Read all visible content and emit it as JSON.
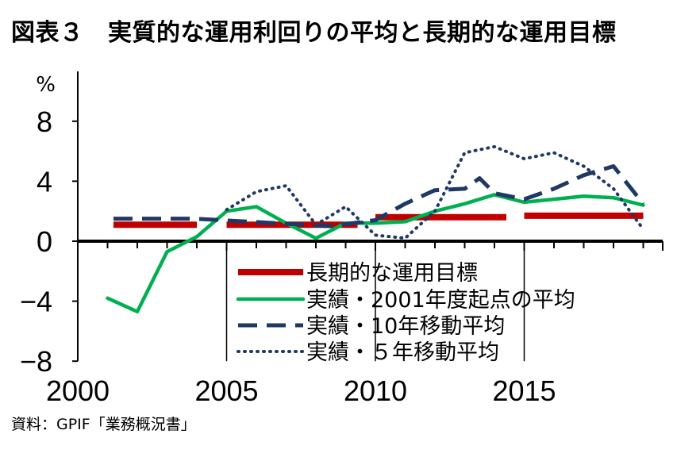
{
  "title": "図表３　実質的な運用利回りの平均と長期的な運用目標",
  "source": "資料：GPIF「業務概況書」",
  "chart_data": {
    "type": "line",
    "ylabel": "%",
    "ylim": [
      -8,
      10
    ],
    "xlim": [
      2000,
      2019.5
    ],
    "y_ticks": [
      8,
      4,
      0,
      -4,
      -8
    ],
    "y_tick_labels": [
      "8",
      "4",
      "0",
      "−4",
      "−8"
    ],
    "x_ticks": [
      2000,
      2005,
      2010,
      2015
    ],
    "x_tick_labels": [
      "2000",
      "2005",
      "2010",
      "2015"
    ],
    "grid": false,
    "legend_position": "bottom-center",
    "series": [
      {
        "name": "長期的な運用目標",
        "color": "#c00000",
        "style": "solid-thick",
        "segments": [
          [
            [
              2001.2,
              1.1
            ],
            [
              2004.0,
              1.1
            ]
          ],
          [
            [
              2005.0,
              1.1
            ],
            [
              2009.4,
              1.1
            ]
          ],
          [
            [
              2010.0,
              1.6
            ],
            [
              2014.4,
              1.6
            ]
          ],
          [
            [
              2015.0,
              1.7
            ],
            [
              2019.0,
              1.7
            ]
          ]
        ]
      },
      {
        "name": "実績・2001年度起点の平均",
        "color": "#00b050",
        "style": "solid",
        "points": [
          [
            2001,
            -3.8
          ],
          [
            2002,
            -4.7
          ],
          [
            2003,
            -0.7
          ],
          [
            2004,
            0.3
          ],
          [
            2005,
            2.0
          ],
          [
            2006,
            2.3
          ],
          [
            2007,
            1.2
          ],
          [
            2008,
            0.2
          ],
          [
            2009,
            1.2
          ],
          [
            2010,
            1.2
          ],
          [
            2011,
            1.3
          ],
          [
            2012,
            2.0
          ],
          [
            2013,
            2.5
          ],
          [
            2014,
            3.1
          ],
          [
            2015,
            2.6
          ],
          [
            2016,
            2.8
          ],
          [
            2017,
            3.0
          ],
          [
            2018,
            2.9
          ],
          [
            2019,
            2.4
          ]
        ]
      },
      {
        "name": "実績・10年移動平均",
        "color": "#1f3864",
        "style": "dashed",
        "points": [
          [
            2001.2,
            1.5
          ],
          [
            2003.9,
            1.5
          ],
          [
            2008.5,
            1.0
          ],
          [
            2010.0,
            1.4
          ],
          [
            2011.0,
            2.5
          ],
          [
            2012.0,
            3.4
          ],
          [
            2013.0,
            3.5
          ],
          [
            2013.5,
            4.2
          ],
          [
            2014.0,
            3.2
          ],
          [
            2015.0,
            2.8
          ],
          [
            2016.0,
            3.5
          ],
          [
            2017.0,
            4.4
          ],
          [
            2018.0,
            5.0
          ],
          [
            2019.0,
            2.5
          ]
        ]
      },
      {
        "name": "実績・５年移動平均",
        "color": "#1f3864",
        "style": "dotted",
        "points": [
          [
            2005.0,
            2.1
          ],
          [
            2006.0,
            3.3
          ],
          [
            2007.0,
            3.7
          ],
          [
            2008.0,
            1.1
          ],
          [
            2009.0,
            2.3
          ],
          [
            2010.0,
            0.4
          ],
          [
            2011.0,
            0.2
          ],
          [
            2012.0,
            2.0
          ],
          [
            2013.0,
            5.9
          ],
          [
            2014.0,
            6.3
          ],
          [
            2015.0,
            5.5
          ],
          [
            2016.0,
            5.9
          ],
          [
            2017.0,
            5.0
          ],
          [
            2018.0,
            3.5
          ],
          [
            2019.0,
            0.8
          ]
        ]
      }
    ]
  }
}
